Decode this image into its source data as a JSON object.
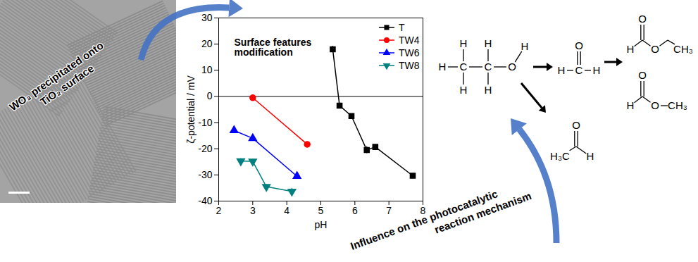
{
  "chart_data": {
    "type": "line",
    "xlabel": "pH",
    "ylabel": "ζ-potential / mV",
    "xlim": [
      2,
      8
    ],
    "xticks": [
      2,
      3,
      4,
      5,
      6,
      7,
      8
    ],
    "ylim": [
      -40,
      30
    ],
    "yticks": [
      -40,
      -30,
      -20,
      -10,
      0,
      10,
      20,
      30
    ],
    "grid": false,
    "legend": "top-right",
    "reference_lines": [
      0
    ],
    "annotations": [
      {
        "lines": [
          "Surface features",
          "modification"
        ]
      }
    ],
    "series": [
      {
        "name": "T",
        "color": "#000000",
        "marker": "square",
        "x": [
          5.35,
          5.55,
          5.9,
          6.35,
          6.6,
          7.7
        ],
        "values": [
          18,
          -3.5,
          -7.5,
          -20.5,
          -19.3,
          -30.3
        ],
        "errors": [
          1.2,
          0.4,
          0.4,
          1.3,
          0.5,
          0.9
        ]
      },
      {
        "name": "TW4",
        "color": "#ff0000",
        "marker": "circle",
        "x": [
          3.0,
          4.6
        ],
        "values": [
          -0.5,
          -18.3
        ],
        "errors": [
          0.3,
          0.6
        ]
      },
      {
        "name": "TW6",
        "color": "#0000ff",
        "marker": "triangle",
        "x": [
          2.45,
          3.0,
          4.3
        ],
        "values": [
          -13,
          -16,
          -30.5
        ],
        "errors": [
          0.5,
          0.5,
          0.6
        ]
      },
      {
        "name": "TW8",
        "color": "#008080",
        "marker": "triangle-down",
        "x": [
          2.65,
          3.0,
          3.4,
          4.15
        ],
        "values": [
          -24.7,
          -24.8,
          -34.5,
          -36.3
        ],
        "errors": [
          0.9,
          0.8,
          0.9,
          1.2
        ]
      }
    ]
  },
  "figure": {
    "image_caption": [
      "WO₃ precipitated onto",
      "TiO₂ surface"
    ],
    "mechanism_caption": [
      "Influence on the photocatalytic",
      "reaction mechanism"
    ],
    "molecules": [
      {
        "labels": [
          "H",
          "C",
          "C",
          "O",
          "H",
          "H",
          "H",
          "H",
          "H"
        ]
      },
      {
        "labels": [
          "H",
          "C",
          "H",
          "O"
        ]
      },
      {
        "labels": [
          "H",
          "O",
          "O",
          "CH₃"
        ]
      },
      {
        "labels": [
          "H",
          "O",
          "O",
          "CH₃"
        ]
      },
      {
        "labels": [
          "H₃C",
          "O",
          "H"
        ]
      }
    ]
  }
}
